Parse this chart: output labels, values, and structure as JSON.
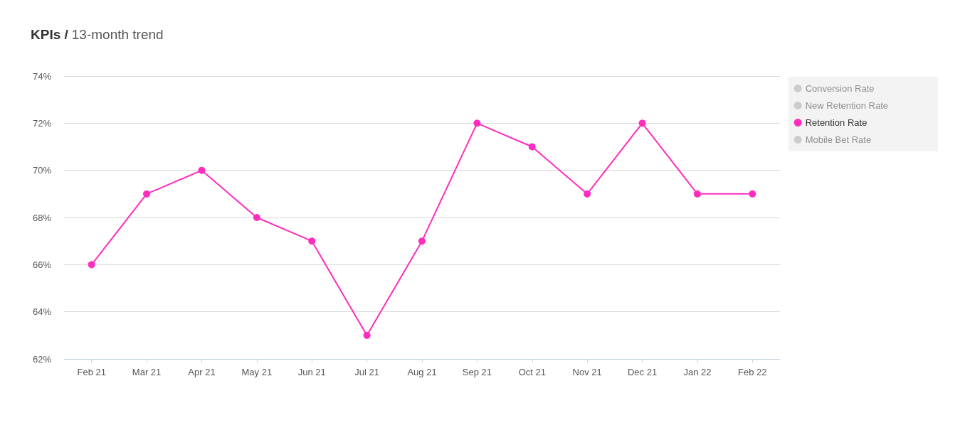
{
  "chart_data": {
    "type": "line",
    "title": "KPIs /",
    "subtitle": "13-month trend",
    "categories": [
      "Feb 21",
      "Mar 21",
      "Apr 21",
      "May 21",
      "Jun 21",
      "Jul 21",
      "Aug 21",
      "Sep 21",
      "Oct 21",
      "Nov 21",
      "Dec 21",
      "Jan 22",
      "Feb 22"
    ],
    "series": [
      {
        "name": "Conversion Rate",
        "color": "#cccccc",
        "values": [
          null,
          null,
          null,
          null,
          null,
          null,
          null,
          null,
          null,
          null,
          null,
          null,
          null
        ]
      },
      {
        "name": "New Retention Rate",
        "color": "#cccccc",
        "values": [
          null,
          null,
          null,
          null,
          null,
          null,
          null,
          null,
          null,
          null,
          null,
          null,
          null
        ]
      },
      {
        "name": "Retention Rate",
        "color": "#ff2dbe",
        "values": [
          66,
          69,
          70,
          68,
          67,
          63,
          67,
          72,
          71,
          69,
          72,
          69,
          69
        ]
      },
      {
        "name": "Mobile Bet Rate",
        "color": "#cccccc",
        "values": [
          null,
          null,
          null,
          null,
          null,
          null,
          null,
          null,
          null,
          null,
          null,
          null,
          null
        ]
      }
    ],
    "ylim": [
      62,
      74
    ],
    "yticks": [
      {
        "value": 62,
        "label": "62%"
      },
      {
        "value": 64,
        "label": "64%"
      },
      {
        "value": 66,
        "label": "66%"
      },
      {
        "value": 68,
        "label": "68%"
      },
      {
        "value": 70,
        "label": "70%"
      },
      {
        "value": 72,
        "label": "72%"
      },
      {
        "value": 74,
        "label": "74%"
      }
    ],
    "grid": "y",
    "legend": "right",
    "marker": "circle",
    "line_style": "solid"
  }
}
